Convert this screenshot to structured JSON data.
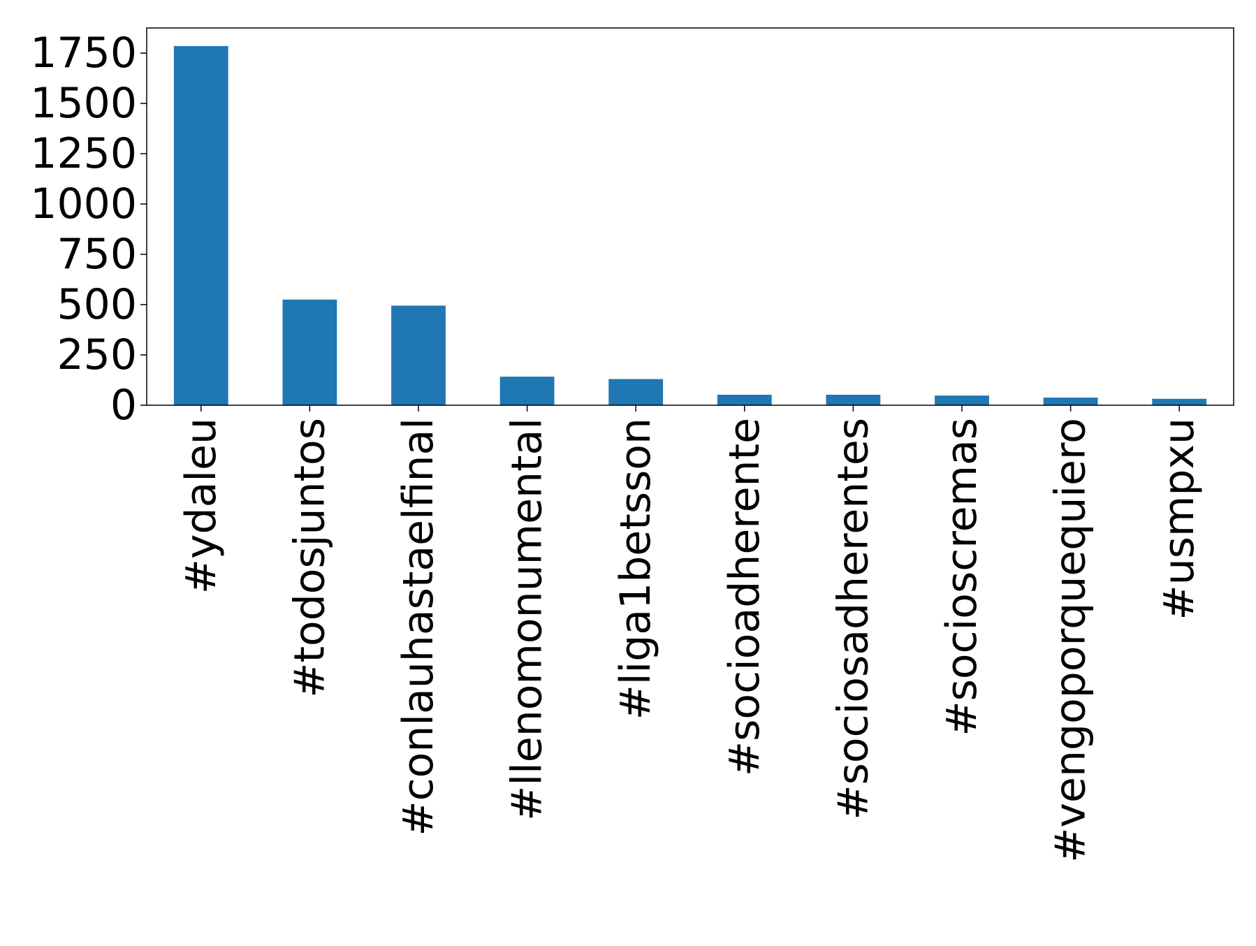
{
  "chart_data": {
    "type": "bar",
    "categories": [
      "#ydaleu",
      "#todosjuntos",
      "#conlauhastaelfinal",
      "#llenomonumental",
      "#liga1betsson",
      "#socioadherente",
      "#sociosadherentes",
      "#socioscremas",
      "#vengoporquequiero",
      "#usmpxu"
    ],
    "values": [
      1785,
      525,
      495,
      142,
      130,
      52,
      52,
      48,
      38,
      32
    ],
    "yticks": [
      0,
      250,
      500,
      750,
      1000,
      1250,
      1500,
      1750
    ],
    "ylim": [
      0,
      1875
    ],
    "bar_color": "#1f77b4",
    "grid": false,
    "legend": "none"
  }
}
